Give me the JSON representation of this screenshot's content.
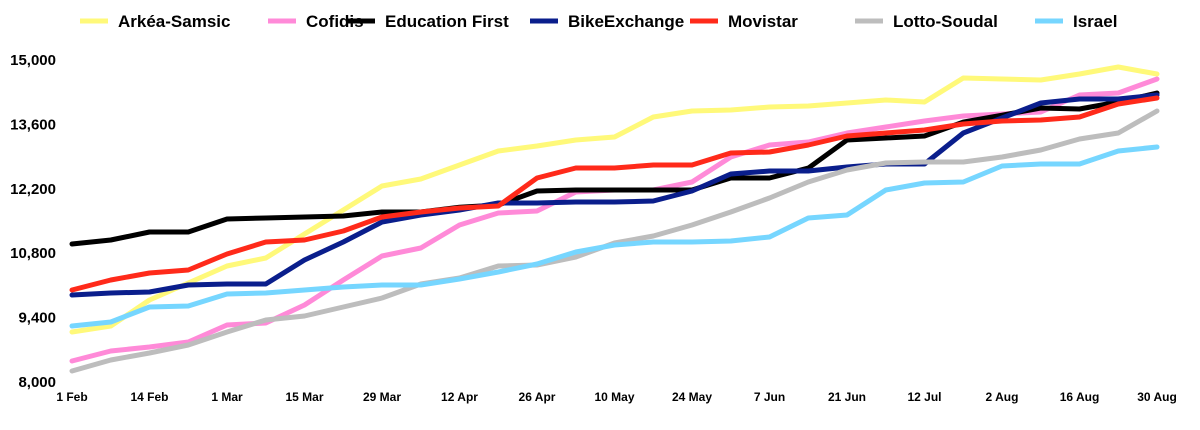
{
  "chart_data": {
    "type": "line",
    "title": "",
    "xlabel": "",
    "ylabel": "",
    "ylim": [
      8000,
      15000
    ],
    "yticks": [
      "8,000",
      "9,400",
      "10,800",
      "12,200",
      "13,600",
      "15,000"
    ],
    "ytick_values": [
      8000,
      9400,
      10800,
      12200,
      13600,
      15000
    ],
    "xtick_labels": [
      "1 Feb",
      "14 Feb",
      "1 Mar",
      "15 Mar",
      "29 Mar",
      "12 Apr",
      "26 Apr",
      "10 May",
      "24 May",
      "7 Jun",
      "21 Jun",
      "12 Jul",
      "2 Aug",
      "16 Aug",
      "30 Aug"
    ],
    "grid": false,
    "legend_position": "top",
    "point_count": 29,
    "series": [
      {
        "name": "Arkéa-Samsic",
        "color": "#FFF97A",
        "values": [
          9087,
          9217,
          9783,
          10152,
          10522,
          10696,
          11217,
          11739,
          12261,
          12413,
          12717,
          13022,
          13130,
          13261,
          13326,
          13761,
          13891,
          13913,
          13978,
          14000,
          14065,
          14130,
          14087,
          14609,
          14587,
          14565,
          14696,
          14848,
          14696
        ]
      },
      {
        "name": "Cofidis",
        "color": "#FF8AD8",
        "values": [
          8457,
          8674,
          8761,
          8870,
          9239,
          9283,
          9674,
          10217,
          10739,
          10913,
          11413,
          11674,
          11717,
          12130,
          12174,
          12174,
          12348,
          12891,
          13152,
          13217,
          13413,
          13543,
          13674,
          13783,
          13826,
          13870,
          14239,
          14283,
          14587
        ]
      },
      {
        "name": "Education First",
        "color": "#000000",
        "values": [
          11000,
          11087,
          11260,
          11260,
          11543,
          11565,
          11587,
          11609,
          11696,
          11696,
          11800,
          11848,
          12152,
          12174,
          12174,
          12174,
          12174,
          12435,
          12435,
          12650,
          13260,
          13304,
          13348,
          13650,
          13800,
          13957,
          13935,
          14087,
          14283
        ]
      },
      {
        "name": "BikeExchange",
        "color": "#0A1E8C",
        "values": [
          9891,
          9935,
          9956,
          10109,
          10130,
          10130,
          10652,
          11043,
          11478,
          11630,
          11739,
          11891,
          11891,
          11913,
          11913,
          11935,
          12152,
          12522,
          12587,
          12587,
          12674,
          12739,
          12739,
          13413,
          13739,
          14065,
          14152,
          14152,
          14239
        ]
      },
      {
        "name": "Movistar",
        "color": "#FF2A1A",
        "values": [
          10000,
          10217,
          10370,
          10435,
          10783,
          11043,
          11087,
          11283,
          11587,
          11696,
          11783,
          11826,
          12435,
          12652,
          12652,
          12717,
          12717,
          12978,
          13000,
          13152,
          13348,
          13413,
          13478,
          13609,
          13674,
          13696,
          13761,
          14043,
          14174
        ]
      },
      {
        "name": "Lotto-Soudal",
        "color": "#BDBDBD",
        "values": [
          8239,
          8478,
          8630,
          8804,
          9087,
          9348,
          9435,
          9630,
          9826,
          10130,
          10261,
          10522,
          10543,
          10717,
          11022,
          11174,
          11413,
          11696,
          12000,
          12348,
          12609,
          12761,
          12783,
          12783,
          12891,
          13043,
          13283,
          13413,
          13891
        ]
      },
      {
        "name": "Israel",
        "color": "#76D6FF",
        "values": [
          9217,
          9304,
          9630,
          9652,
          9913,
          9935,
          10000,
          10065,
          10109,
          10109,
          10239,
          10391,
          10565,
          10826,
          10978,
          11043,
          11043,
          11065,
          11152,
          11565,
          11630,
          12174,
          12326,
          12348,
          12696,
          12739,
          12739,
          13022,
          13109
        ]
      }
    ]
  }
}
